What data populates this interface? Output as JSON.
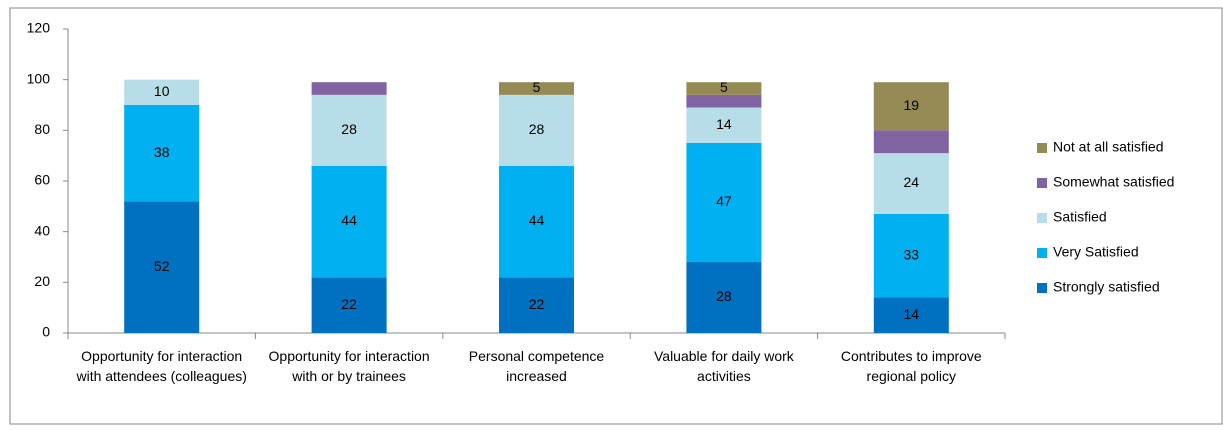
{
  "chart_data": {
    "type": "stacked_bar",
    "categories": [
      "Opportunity for interaction with attendees (colleagues)",
      "Opportunity for interaction with or by trainees",
      "Personal competence increased",
      "Valuable for daily work activities",
      "Contributes to improve regional policy"
    ],
    "series": [
      {
        "name": "Strongly satisfied",
        "color": "#0070c0",
        "values": [
          52,
          22,
          22,
          28,
          14
        ],
        "value_labels": [
          "52",
          "22",
          "22",
          "28",
          "14"
        ]
      },
      {
        "name": "Very Satisfied",
        "color": "#00b0f0",
        "values": [
          38,
          44,
          44,
          47,
          33
        ],
        "value_labels": [
          "38",
          "44",
          "44",
          "47",
          "33"
        ]
      },
      {
        "name": "Satisfied",
        "color": "#b7dee8",
        "values": [
          10,
          28,
          28,
          14,
          24
        ],
        "value_labels": [
          "10",
          "28",
          "28",
          "14",
          "24"
        ]
      },
      {
        "name": "Somewhat satisfied",
        "color": "#8064a2",
        "values": [
          0,
          5,
          0,
          5,
          9
        ],
        "value_labels": [
          null,
          null,
          null,
          null,
          null
        ]
      },
      {
        "name": "Not at all satisfied",
        "color": "#948a54",
        "values": [
          0,
          0,
          5,
          5,
          19
        ],
        "value_labels": [
          null,
          null,
          "5",
          "5",
          "19"
        ]
      }
    ],
    "ylim": [
      0,
      120
    ],
    "yticks": [
      0,
      20,
      40,
      60,
      80,
      100,
      120
    ],
    "grid": false,
    "legend": "right"
  }
}
